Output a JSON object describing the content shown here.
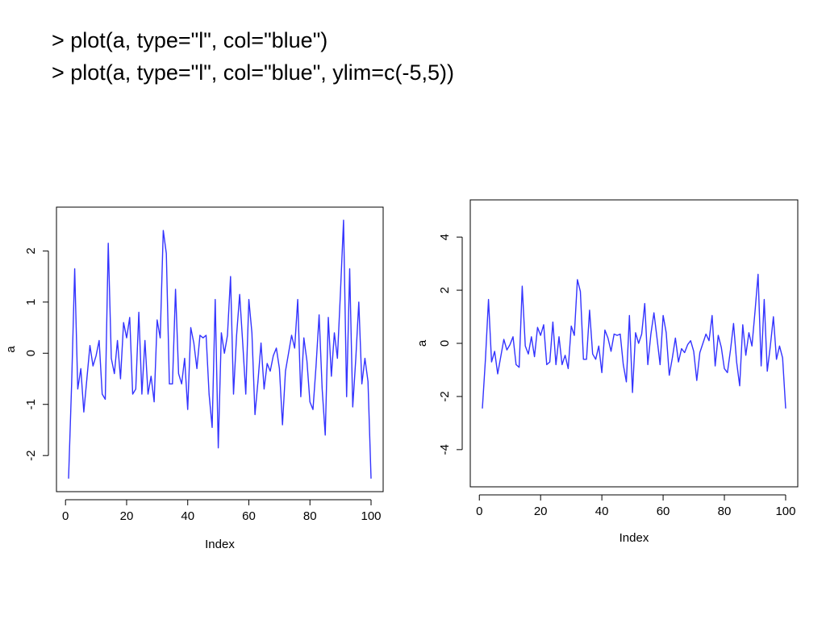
{
  "slide": {
    "code_lines": [
      "> plot(a, type=\"l\", col=\"blue\")",
      "> plot(a, type=\"l\", col=\"blue\", ylim=c(-5,5))"
    ]
  },
  "series_color": "#3333ff",
  "chart_data": [
    {
      "type": "line",
      "title": "",
      "xlabel": "Index",
      "ylabel": "a",
      "xlim": [
        1,
        100
      ],
      "ylim": [
        -2.5,
        2.65
      ],
      "xticks": [
        0,
        20,
        40,
        60,
        80,
        100
      ],
      "yticks": [
        -2,
        -1,
        0,
        1,
        2
      ],
      "grid": false,
      "series": [
        {
          "x": [
            1,
            2,
            3,
            4,
            5,
            6,
            7,
            8,
            9,
            10,
            11,
            12,
            13,
            14,
            15,
            16,
            17,
            18,
            19,
            20,
            21,
            22,
            23,
            24,
            25,
            26,
            27,
            28,
            29,
            30,
            31,
            32,
            33,
            34,
            35,
            36,
            37,
            38,
            39,
            40,
            41,
            42,
            43,
            44,
            45,
            46,
            47,
            48,
            49,
            50,
            51,
            52,
            53,
            54,
            55,
            56,
            57,
            58,
            59,
            60,
            61,
            62,
            63,
            64,
            65,
            66,
            67,
            68,
            69,
            70,
            71,
            72,
            73,
            74,
            75,
            76,
            77,
            78,
            79,
            80,
            81,
            82,
            83,
            84,
            85,
            86,
            87,
            88,
            89,
            90,
            91,
            92,
            93,
            94,
            95,
            96,
            97,
            98,
            99,
            100
          ],
          "values": [
            -2.45,
            -0.6,
            1.65,
            -0.7,
            -0.3,
            -1.15,
            -0.5,
            0.15,
            -0.25,
            -0.05,
            0.25,
            -0.8,
            -0.9,
            2.15,
            -0.1,
            -0.4,
            0.25,
            -0.5,
            0.6,
            0.3,
            0.7,
            -0.8,
            -0.7,
            0.8,
            -0.8,
            0.25,
            -0.8,
            -0.45,
            -0.95,
            0.65,
            0.3,
            2.4,
            1.95,
            -0.6,
            -0.6,
            1.25,
            -0.4,
            -0.6,
            -0.1,
            -1.1,
            0.5,
            0.2,
            -0.3,
            0.35,
            0.3,
            0.35,
            -0.8,
            -1.45,
            1.05,
            -1.85,
            0.4,
            0.0,
            0.35,
            1.5,
            -0.8,
            0.35,
            1.15,
            0.2,
            -0.8,
            1.05,
            0.4,
            -1.2,
            -0.55,
            0.2,
            -0.7,
            -0.2,
            -0.35,
            -0.05,
            0.1,
            -0.3,
            -1.4,
            -0.35,
            0.0,
            0.35,
            0.1,
            1.05,
            -0.85,
            0.3,
            -0.15,
            -0.95,
            -1.1,
            -0.25,
            0.75,
            -0.7,
            -1.6,
            0.7,
            -0.45,
            0.4,
            -0.1,
            1.2,
            2.6,
            -0.85,
            1.65,
            -1.05,
            -0.1,
            1.0,
            -0.6,
            -0.1,
            -0.55,
            -2.45
          ]
        }
      ]
    },
    {
      "type": "line",
      "title": "",
      "xlabel": "Index",
      "ylabel": "a",
      "xlim": [
        1,
        100
      ],
      "ylim": [
        -5,
        5
      ],
      "xticks": [
        0,
        20,
        40,
        60,
        80,
        100
      ],
      "yticks": [
        -4,
        -2,
        0,
        2,
        4
      ],
      "grid": false,
      "series": [
        {
          "x": [
            1,
            2,
            3,
            4,
            5,
            6,
            7,
            8,
            9,
            10,
            11,
            12,
            13,
            14,
            15,
            16,
            17,
            18,
            19,
            20,
            21,
            22,
            23,
            24,
            25,
            26,
            27,
            28,
            29,
            30,
            31,
            32,
            33,
            34,
            35,
            36,
            37,
            38,
            39,
            40,
            41,
            42,
            43,
            44,
            45,
            46,
            47,
            48,
            49,
            50,
            51,
            52,
            53,
            54,
            55,
            56,
            57,
            58,
            59,
            60,
            61,
            62,
            63,
            64,
            65,
            66,
            67,
            68,
            69,
            70,
            71,
            72,
            73,
            74,
            75,
            76,
            77,
            78,
            79,
            80,
            81,
            82,
            83,
            84,
            85,
            86,
            87,
            88,
            89,
            90,
            91,
            92,
            93,
            94,
            95,
            96,
            97,
            98,
            99,
            100
          ],
          "values": [
            -2.45,
            -0.6,
            1.65,
            -0.7,
            -0.3,
            -1.15,
            -0.5,
            0.15,
            -0.25,
            -0.05,
            0.25,
            -0.8,
            -0.9,
            2.15,
            -0.1,
            -0.4,
            0.25,
            -0.5,
            0.6,
            0.3,
            0.7,
            -0.8,
            -0.7,
            0.8,
            -0.8,
            0.25,
            -0.8,
            -0.45,
            -0.95,
            0.65,
            0.3,
            2.4,
            1.95,
            -0.6,
            -0.6,
            1.25,
            -0.4,
            -0.6,
            -0.1,
            -1.1,
            0.5,
            0.2,
            -0.3,
            0.35,
            0.3,
            0.35,
            -0.8,
            -1.45,
            1.05,
            -1.85,
            0.4,
            0.0,
            0.35,
            1.5,
            -0.8,
            0.35,
            1.15,
            0.2,
            -0.8,
            1.05,
            0.4,
            -1.2,
            -0.55,
            0.2,
            -0.7,
            -0.2,
            -0.35,
            -0.05,
            0.1,
            -0.3,
            -1.4,
            -0.35,
            0.0,
            0.35,
            0.1,
            1.05,
            -0.85,
            0.3,
            -0.15,
            -0.95,
            -1.1,
            -0.25,
            0.75,
            -0.7,
            -1.6,
            0.7,
            -0.45,
            0.4,
            -0.1,
            1.2,
            2.6,
            -0.85,
            1.65,
            -1.05,
            -0.1,
            1.0,
            -0.6,
            -0.1,
            -0.55,
            -2.45
          ]
        }
      ]
    }
  ]
}
